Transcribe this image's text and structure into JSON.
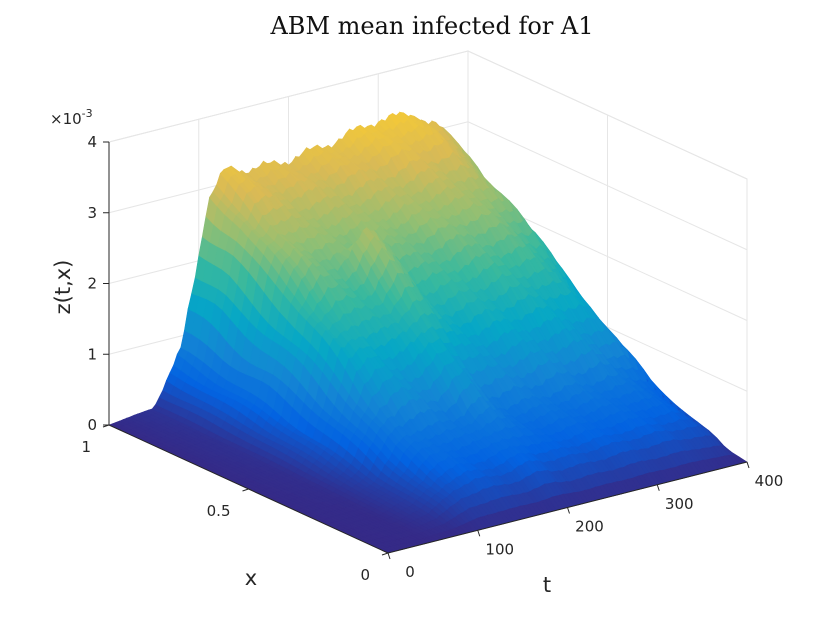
{
  "chart_data": {
    "type": "surface",
    "title": "ABM mean infected for A1",
    "xlabel": "x",
    "tlabel": "t",
    "zlabel": "z(t,x)",
    "z_exponent_label": "×10",
    "z_exponent_power": "-3",
    "t_range": [
      0,
      400
    ],
    "x_range": [
      0,
      1
    ],
    "z_range": [
      0,
      4
    ],
    "t_ticks": [
      "0",
      "100",
      "200",
      "300",
      "400"
    ],
    "x_ticks": [
      "0",
      "0.5",
      "1"
    ],
    "z_ticks": [
      "0",
      "1",
      "2",
      "3",
      "4"
    ],
    "grid": true,
    "colormap": "parula",
    "t_profile": [
      [
        0,
        0.0
      ],
      [
        50,
        0.08
      ],
      [
        80,
        0.8
      ],
      [
        100,
        2.1
      ],
      [
        110,
        2.8
      ],
      [
        130,
        3.2
      ],
      [
        160,
        3.1
      ],
      [
        200,
        3.1
      ],
      [
        250,
        3.2
      ],
      [
        300,
        3.35
      ],
      [
        340,
        3.3
      ],
      [
        370,
        3.0
      ],
      [
        390,
        2.4
      ],
      [
        400,
        0.6
      ]
    ],
    "x_profile": [
      [
        0,
        0.0
      ],
      [
        0.1,
        0.12
      ],
      [
        0.2,
        0.18
      ],
      [
        0.3,
        0.24
      ],
      [
        0.5,
        0.5
      ],
      [
        0.7,
        0.74
      ],
      [
        0.8,
        0.83
      ],
      [
        0.85,
        0.88
      ],
      [
        0.9,
        0.94
      ],
      [
        1,
        1.0
      ]
    ],
    "ridge": {
      "t": 195,
      "x_max": 0.7,
      "height": 0.45,
      "width": 18
    }
  }
}
